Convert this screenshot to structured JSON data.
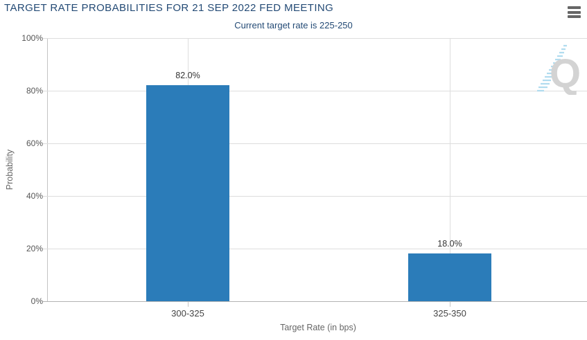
{
  "header": {
    "title": "TARGET RATE PROBABILITIES FOR 21 SEP 2022 FED MEETING",
    "subtitle": "Current target rate is 225-250",
    "menu_icon": "hamburger-menu-icon"
  },
  "colors": {
    "title_navy": "#234a75",
    "bar_blue": "#2b7cb9",
    "gridline": "#dddddd",
    "axis_line": "#b3b3b3",
    "watermark_gray": "#d3d3d3",
    "watermark_blue": "#a9d9ee"
  },
  "chart_data": {
    "type": "bar",
    "title": "TARGET RATE PROBABILITIES FOR 21 SEP 2022 FED MEETING",
    "subtitle": "Current target rate is 225-250",
    "categories": [
      "300-325",
      "325-350"
    ],
    "values": [
      82.0,
      18.0
    ],
    "value_labels": [
      "82.0%",
      "18.0%"
    ],
    "xlabel": "Target Rate (in bps)",
    "ylabel": "Probability",
    "ylim": [
      0,
      100
    ],
    "yticks": [
      "0%",
      "20%",
      "40%",
      "60%",
      "80%",
      "100%"
    ],
    "grid": true,
    "legend": false,
    "bar_color": "#2b7cb9",
    "watermark_letter": "Q"
  }
}
